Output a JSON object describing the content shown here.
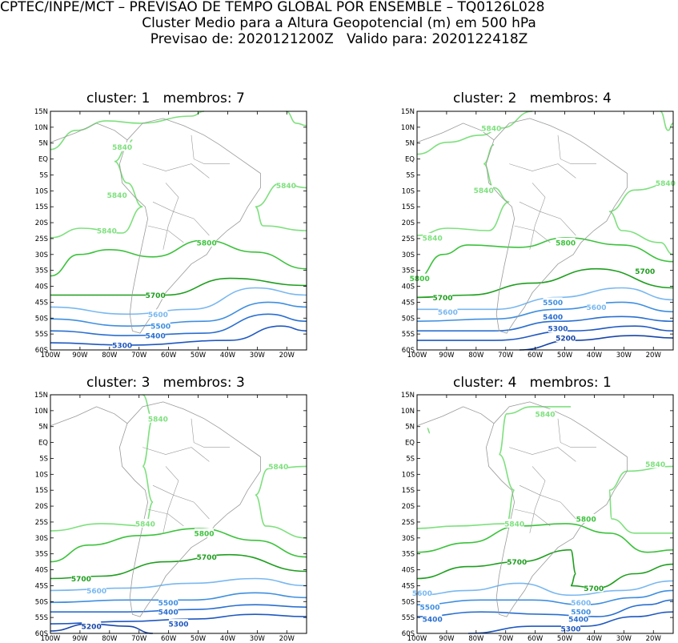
{
  "header": {
    "line1": "CPTEC/INPE/MCT – PREVISAO DE TEMPO GLOBAL POR ENSEMBLE – TQ0126L028",
    "line2": "Cluster Medio para a Altura Geopotencial (m) em 500 hPa",
    "line3": "Previsao de: 2020121200Z   Valido para: 2020122418Z"
  },
  "axes": {
    "lat_ticks": [
      "15N",
      "10N",
      "5N",
      "EQ",
      "5S",
      "10S",
      "15S",
      "20S",
      "25S",
      "30S",
      "35S",
      "40S",
      "45S",
      "50S",
      "55S",
      "60S"
    ],
    "lon_ticks": [
      "100W",
      "90W",
      "80W",
      "70W",
      "60W",
      "50W",
      "40W",
      "30W",
      "20W"
    ]
  },
  "colors": {
    "c5840": "#7ee07e",
    "c5800": "#3cc23c",
    "c5700": "#1e9e1e",
    "c5600": "#79b8f0",
    "c5500": "#3f8fe0",
    "c5400": "#2a6fd0",
    "c5300": "#1f58c0",
    "c5200": "#1846a8",
    "coast": "#999999"
  },
  "panels": [
    {
      "title": "cluster: 1   membros: 7",
      "labels": [
        "5840",
        "5840",
        "5840",
        "5840",
        "5800",
        "5700",
        "5600",
        "5500",
        "5400",
        "5300"
      ]
    },
    {
      "title": "cluster: 2   membros: 4",
      "labels": [
        "5840",
        "5840",
        "5840",
        "5840",
        "5800",
        "5800",
        "5700",
        "5700",
        "5600",
        "5600",
        "5500",
        "5400",
        "5300",
        "5200"
      ]
    },
    {
      "title": "cluster: 3   membros: 3",
      "labels": [
        "5840",
        "5840",
        "5840",
        "5800",
        "5700",
        "5700",
        "5600",
        "5500",
        "5400",
        "5300",
        "5200"
      ]
    },
    {
      "title": "cluster: 4   membros: 1",
      "labels": [
        "5840",
        "5840",
        "5840",
        "5800",
        "5700",
        "5700",
        "5600",
        "5600",
        "5500",
        "5500",
        "5400",
        "5400",
        "5300"
      ]
    }
  ]
}
